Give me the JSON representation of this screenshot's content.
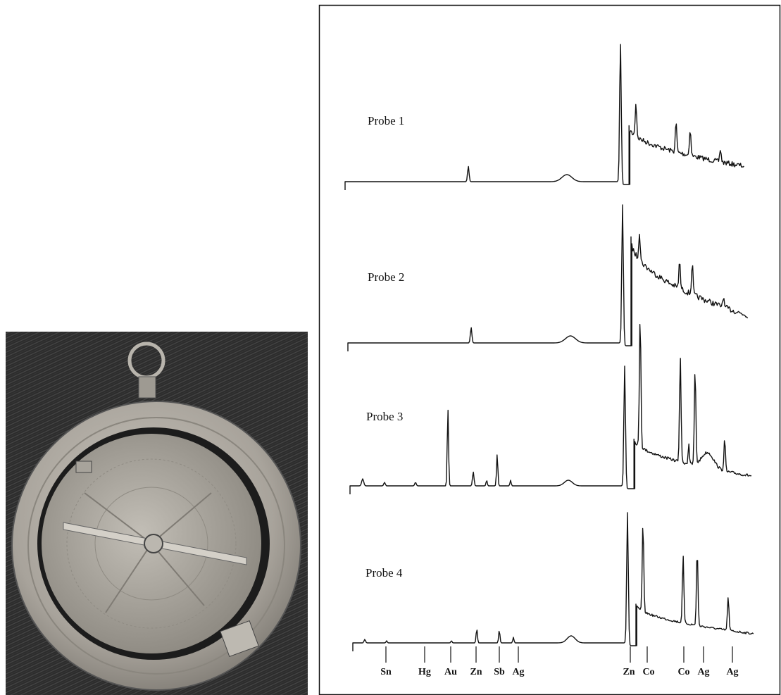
{
  "probes": [
    "Probe 1",
    "Probe 2",
    "Probe 3",
    "Probe 4"
  ],
  "elements": [
    "Sn",
    "Hg",
    "Au",
    "Zn",
    "Sb",
    "Ag",
    "Zn",
    "Co",
    "Co",
    "Ag",
    "Ag"
  ]
}
